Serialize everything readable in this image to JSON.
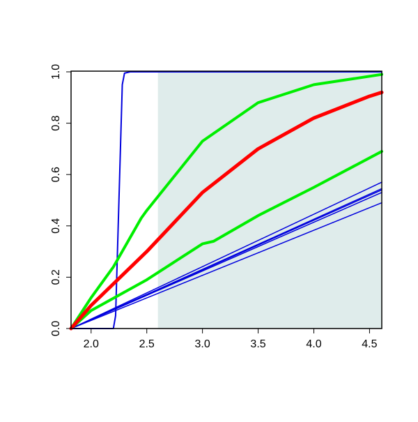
{
  "chart_data": {
    "type": "line",
    "xlim": [
      1.82,
      4.61
    ],
    "ylim": [
      0,
      1
    ],
    "xticks": [
      {
        "value": 2,
        "label": "2.0"
      },
      2.5,
      {
        "value": 3,
        "label": "3.0"
      },
      3.5,
      {
        "value": 4,
        "label": "4.0"
      },
      4.5
    ],
    "yticks": [
      {
        "value": 0,
        "label": "0.0"
      },
      0.2,
      0.4,
      0.6,
      0.8,
      {
        "value": 1,
        "label": "1.0"
      }
    ],
    "shaded_region": {
      "x": [
        2.6,
        4.61
      ],
      "color": "#dfeceb"
    },
    "series": [
      {
        "color": "#0000dd",
        "width": 1.5,
        "x": [
          1.82,
          4.61
        ],
        "values": [
          0,
          0.57
        ]
      },
      {
        "color": "#0000dd",
        "width": 1.5,
        "x": [
          1.82,
          4.61
        ],
        "values": [
          0,
          0.545
        ]
      },
      {
        "color": "#0000dd",
        "width": 1.5,
        "x": [
          1.82,
          4.61
        ],
        "values": [
          0,
          0.54
        ]
      },
      {
        "color": "#0000dd",
        "width": 1.5,
        "x": [
          1.82,
          4.61
        ],
        "values": [
          0,
          0.53
        ]
      },
      {
        "color": "#0000dd",
        "width": 1.5,
        "x": [
          1.82,
          4.61
        ],
        "values": [
          0,
          0.49
        ]
      },
      {
        "color": "#0000dd",
        "width": 2,
        "x": [
          1.82,
          2.2,
          2.22,
          2.25,
          2.28,
          2.3,
          2.35,
          4.61
        ],
        "values": [
          0,
          0,
          0.05,
          0.5,
          0.95,
          0.995,
          1,
          1
        ]
      },
      {
        "color": "#00ee00",
        "width": 4,
        "x": [
          1.82,
          2.0,
          2.5,
          3.0,
          3.1,
          3.5,
          4.0,
          4.61
        ],
        "values": [
          0,
          0.07,
          0.19,
          0.33,
          0.34,
          0.44,
          0.55,
          0.69
        ]
      },
      {
        "color": "#00ee00",
        "width": 4,
        "x": [
          1.82,
          2.0,
          2.2,
          2.45,
          2.5,
          3.0,
          3.5,
          4.0,
          4.61
        ],
        "values": [
          0,
          0.12,
          0.24,
          0.43,
          0.46,
          0.73,
          0.88,
          0.95,
          0.99
        ]
      },
      {
        "color": "#ff0000",
        "width": 5,
        "x": [
          1.82,
          2.0,
          2.5,
          3.0,
          3.5,
          4.0,
          4.5,
          4.61
        ],
        "values": [
          0,
          0.09,
          0.3,
          0.53,
          0.7,
          0.82,
          0.905,
          0.92
        ]
      }
    ]
  }
}
